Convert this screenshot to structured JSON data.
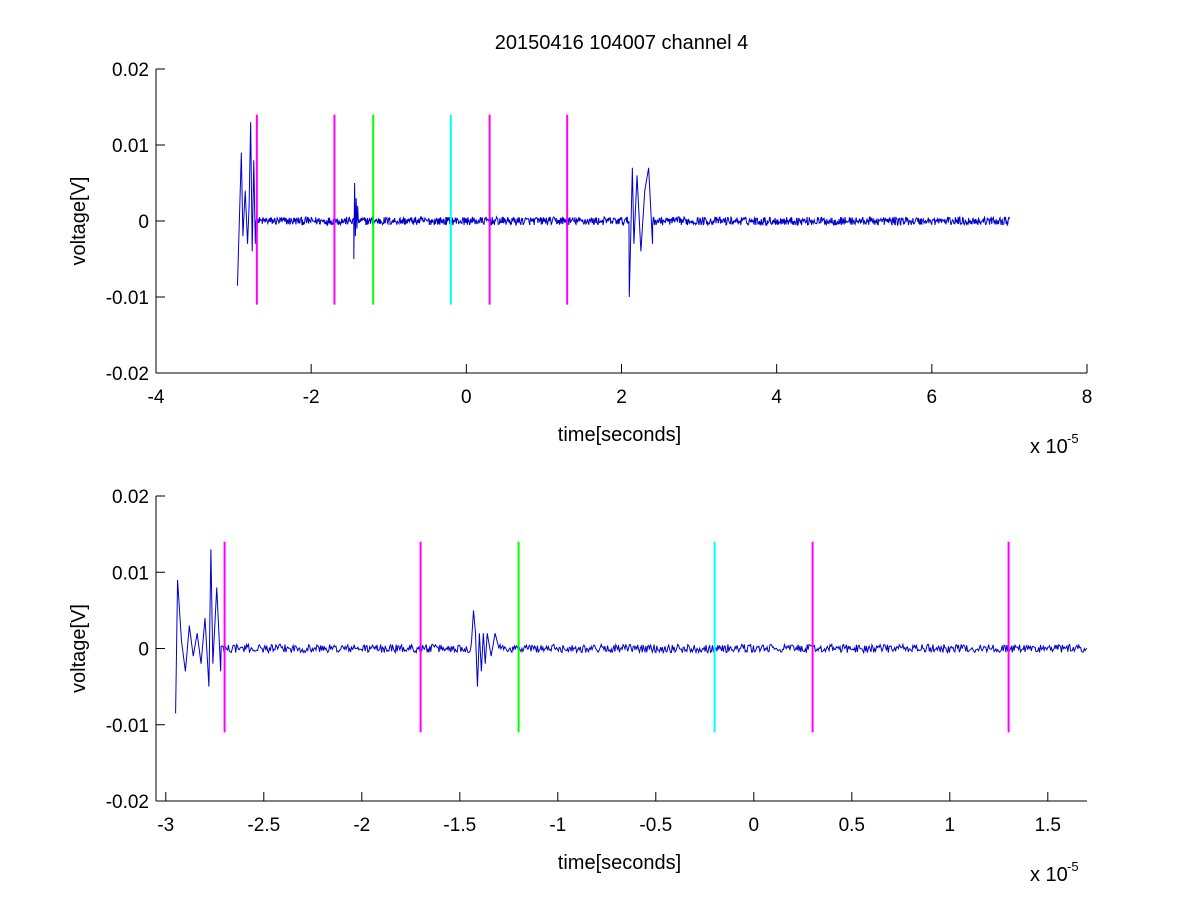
{
  "colors": {
    "signal": "#0000cc",
    "marker_magenta": "#ff00ff",
    "marker_green": "#00ff00",
    "marker_cyan": "#00ffff",
    "axes": "#000000",
    "background": "#ffffff"
  },
  "chart_data": [
    {
      "type": "line",
      "title": "20150416 104007 channel 4",
      "xlabel": "time[seconds]",
      "ylabel": "voltage[V]",
      "x_exponent_base": "x 10",
      "x_exponent_power": "-5",
      "xlim": [
        -4,
        8
      ],
      "ylim": [
        -0.02,
        0.02
      ],
      "xticks": [
        -4,
        -2,
        0,
        2,
        4,
        6,
        8
      ],
      "yticks": [
        -0.02,
        -0.01,
        0,
        0.01,
        0.02
      ],
      "xtick_labels": [
        "-4",
        "-2",
        "0",
        "2",
        "4",
        "6",
        "8"
      ],
      "ytick_labels": [
        "-0.02",
        "-0.01",
        "0",
        "0.01",
        "0.02"
      ],
      "grid": false,
      "signal": {
        "x_range": [
          -2.95,
          7.0
        ],
        "bursts": [
          {
            "x": [
              -2.95,
              -2.9,
              -2.88,
              -2.85,
              -2.82,
              -2.8,
              -2.78,
              -2.76,
              -2.74,
              -2.72
            ],
            "y": [
              -0.0085,
              0.009,
              -0.002,
              0.004,
              -0.003,
              0.002,
              0.013,
              -0.004,
              0.008,
              -0.003
            ]
          },
          {
            "x": [
              -1.45,
              -1.44,
              -1.43,
              -1.42,
              -1.41,
              -1.4
            ],
            "y": [
              -0.005,
              0.005,
              -0.002,
              0.003,
              -0.001,
              0.002
            ]
          },
          {
            "x": [
              2.1,
              2.14,
              2.16,
              2.2,
              2.25,
              2.3,
              2.35,
              2.4
            ],
            "y": [
              -0.01,
              0.007,
              -0.003,
              0.006,
              -0.004,
              0.004,
              0.007,
              -0.003
            ]
          }
        ]
      },
      "markers": [
        {
          "x": -2.7,
          "color": "magenta",
          "y_range": [
            -0.011,
            0.014
          ]
        },
        {
          "x": -1.7,
          "color": "magenta",
          "y_range": [
            -0.011,
            0.014
          ]
        },
        {
          "x": -1.2,
          "color": "green",
          "y_range": [
            -0.011,
            0.014
          ]
        },
        {
          "x": -0.2,
          "color": "cyan",
          "y_range": [
            -0.011,
            0.014
          ]
        },
        {
          "x": 0.3,
          "color": "magenta",
          "y_range": [
            -0.011,
            0.014
          ]
        },
        {
          "x": 1.3,
          "color": "magenta",
          "y_range": [
            -0.011,
            0.014
          ]
        }
      ]
    },
    {
      "type": "line",
      "title": "",
      "xlabel": "time[seconds]",
      "ylabel": "voltage[V]",
      "x_exponent_base": "x 10",
      "x_exponent_power": "-5",
      "xlim": [
        -3.05,
        1.7
      ],
      "ylim": [
        -0.02,
        0.02
      ],
      "xticks": [
        -3,
        -2.5,
        -2,
        -1.5,
        -1,
        -0.5,
        0,
        0.5,
        1,
        1.5
      ],
      "yticks": [
        -0.02,
        -0.01,
        0,
        0.01,
        0.02
      ],
      "xtick_labels": [
        "-3",
        "-2.5",
        "-2",
        "-1.5",
        "-1",
        "-0.5",
        "0",
        "0.5",
        "1",
        "1.5"
      ],
      "ytick_labels": [
        "-0.02",
        "-0.01",
        "0",
        "0.01",
        "0.02"
      ],
      "grid": false,
      "signal": {
        "x_range": [
          -2.95,
          1.7
        ],
        "bursts": [
          {
            "x": [
              -2.95,
              -2.94,
              -2.92,
              -2.9,
              -2.88,
              -2.86,
              -2.84,
              -2.82,
              -2.8,
              -2.78,
              -2.77,
              -2.76,
              -2.74,
              -2.72
            ],
            "y": [
              -0.0085,
              0.009,
              0.001,
              -0.003,
              0.003,
              -0.001,
              0.002,
              -0.002,
              0.004,
              -0.005,
              0.013,
              -0.002,
              0.008,
              -0.003
            ]
          },
          {
            "x": [
              -1.44,
              -1.43,
              -1.42,
              -1.41,
              -1.4,
              -1.39,
              -1.38,
              -1.37,
              -1.36,
              -1.34,
              -1.32,
              -1.3
            ],
            "y": [
              0.001,
              0.005,
              0.002,
              -0.005,
              0.002,
              -0.003,
              0.002,
              -0.002,
              0.002,
              -0.001,
              0.002,
              0.0
            ]
          }
        ]
      },
      "markers": [
        {
          "x": -2.7,
          "color": "magenta",
          "y_range": [
            -0.011,
            0.014
          ]
        },
        {
          "x": -1.7,
          "color": "magenta",
          "y_range": [
            -0.011,
            0.014
          ]
        },
        {
          "x": -1.2,
          "color": "green",
          "y_range": [
            -0.011,
            0.014
          ]
        },
        {
          "x": -0.2,
          "color": "cyan",
          "y_range": [
            -0.011,
            0.014
          ]
        },
        {
          "x": 0.3,
          "color": "magenta",
          "y_range": [
            -0.011,
            0.014
          ]
        },
        {
          "x": 1.3,
          "color": "magenta",
          "y_range": [
            -0.011,
            0.014
          ]
        }
      ]
    }
  ]
}
